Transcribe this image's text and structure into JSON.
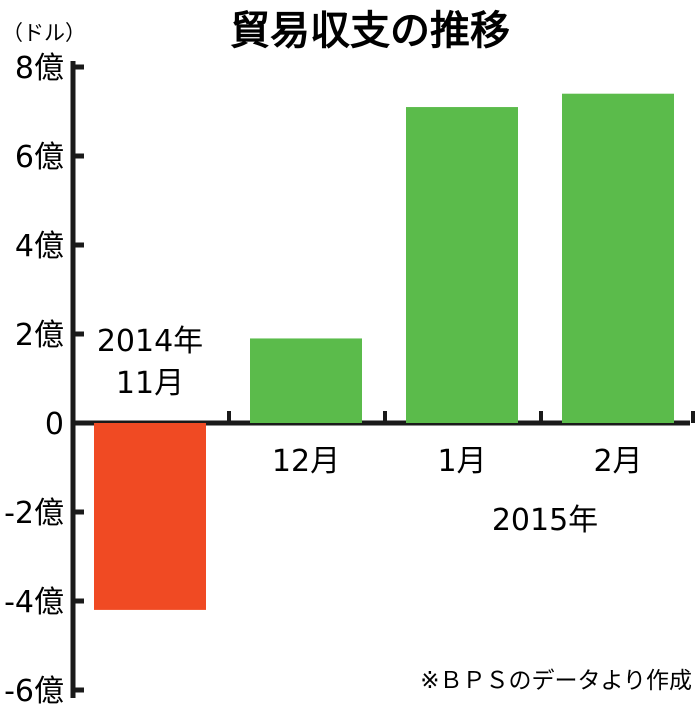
{
  "chart_data": {
    "type": "bar",
    "title": "貿易収支の推移",
    "unit_label": "（ドル）",
    "ylim": [
      -6,
      8
    ],
    "y_ticks": [
      {
        "value": 8,
        "label": "8億"
      },
      {
        "value": 6,
        "label": "6億"
      },
      {
        "value": 4,
        "label": "4億"
      },
      {
        "value": 2,
        "label": "2億"
      },
      {
        "value": 0,
        "label": "0"
      },
      {
        "value": -2,
        "label": "-2億"
      },
      {
        "value": -4,
        "label": "-4億"
      },
      {
        "value": -6,
        "label": "-6億"
      }
    ],
    "categories": [
      "2014年\n11月",
      "12月",
      "1月",
      "2月"
    ],
    "values": [
      -4.2,
      1.9,
      7.1,
      7.4
    ],
    "year_group_label": "2015年",
    "source_note": "※ＢＰＳのデータより作成",
    "colors": {
      "positive": "#5bbb4b",
      "negative": "#f04a23",
      "axis": "#1a1a1a"
    }
  }
}
